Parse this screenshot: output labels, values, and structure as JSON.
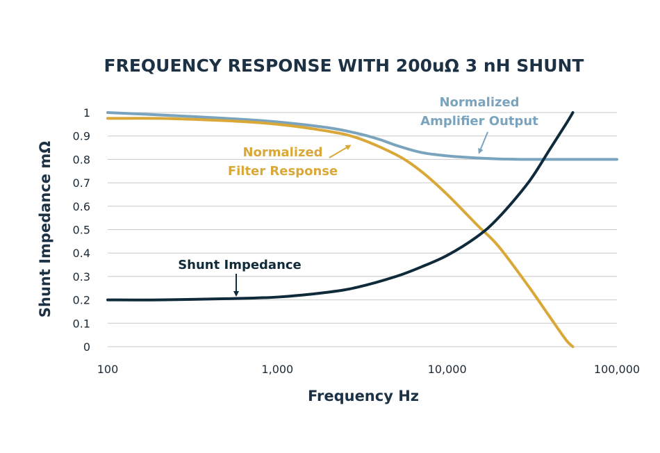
{
  "chart_data": {
    "type": "line",
    "title": "FREQUENCY RESPONSE WITH 200uΩ 3 nH SHUNT",
    "xlabel": "Frequency Hz",
    "ylabel": "Shunt Impedance mΩ",
    "x_scale": "log",
    "xlim": [
      100,
      100000
    ],
    "ylim": [
      0,
      1
    ],
    "x_ticks": [
      {
        "value": 100,
        "label": "100"
      },
      {
        "value": 1000,
        "label": "1,000"
      },
      {
        "value": 10000,
        "label": "10,000"
      },
      {
        "value": 100000,
        "label": "100,000"
      }
    ],
    "y_ticks": [
      {
        "value": 0,
        "label": "0"
      },
      {
        "value": 0.1,
        "label": "0.1"
      },
      {
        "value": 0.2,
        "label": "0.2"
      },
      {
        "value": 0.3,
        "label": "0.3"
      },
      {
        "value": 0.4,
        "label": "0.4"
      },
      {
        "value": 0.5,
        "label": "0.5"
      },
      {
        "value": 0.6,
        "label": "0.6"
      },
      {
        "value": 0.7,
        "label": "0.7"
      },
      {
        "value": 0.8,
        "label": "0.8"
      },
      {
        "value": 0.9,
        "label": "0.9"
      },
      {
        "value": 1,
        "label": "1"
      }
    ],
    "grid": "horizontal",
    "series": [
      {
        "key": "amplifier",
        "color": "#7aa3bd",
        "x": [
          100,
          200,
          500,
          1000,
          2000,
          3000,
          4000,
          5000,
          7000,
          10000,
          15000,
          20000,
          30000,
          50000,
          100000
        ],
        "y": [
          1.0,
          0.99,
          0.975,
          0.96,
          0.935,
          0.91,
          0.885,
          0.86,
          0.83,
          0.815,
          0.806,
          0.802,
          0.8,
          0.8,
          0.8
        ]
      },
      {
        "key": "filter",
        "color": "#d9a838",
        "x": [
          100,
          200,
          500,
          1000,
          2000,
          3000,
          5000,
          7000,
          10000,
          15000,
          20000,
          30000,
          40000,
          50000,
          55000
        ],
        "y": [
          0.975,
          0.975,
          0.965,
          0.95,
          0.92,
          0.89,
          0.82,
          0.75,
          0.65,
          0.52,
          0.43,
          0.26,
          0.13,
          0.03,
          0.0
        ]
      },
      {
        "key": "shunt",
        "color": "#0f2a3a",
        "x": [
          100,
          200,
          500,
          1000,
          2000,
          3000,
          5000,
          7000,
          10000,
          15000,
          20000,
          30000,
          40000,
          50000,
          55000
        ],
        "y": [
          0.2,
          0.2,
          0.205,
          0.212,
          0.233,
          0.255,
          0.3,
          0.34,
          0.39,
          0.47,
          0.55,
          0.7,
          0.84,
          0.95,
          1.0
        ]
      }
    ],
    "annotations": [
      {
        "key": "amplifier",
        "lines": [
          "Normalized",
          "Amplifier Output"
        ],
        "color": "#7aa3bd"
      },
      {
        "key": "filter",
        "lines": [
          "Normalized",
          "Filter Response"
        ],
        "color": "#d9a838"
      },
      {
        "key": "shunt",
        "lines": [
          "Shunt Impedance"
        ],
        "color": "#0f2a3a"
      }
    ]
  }
}
